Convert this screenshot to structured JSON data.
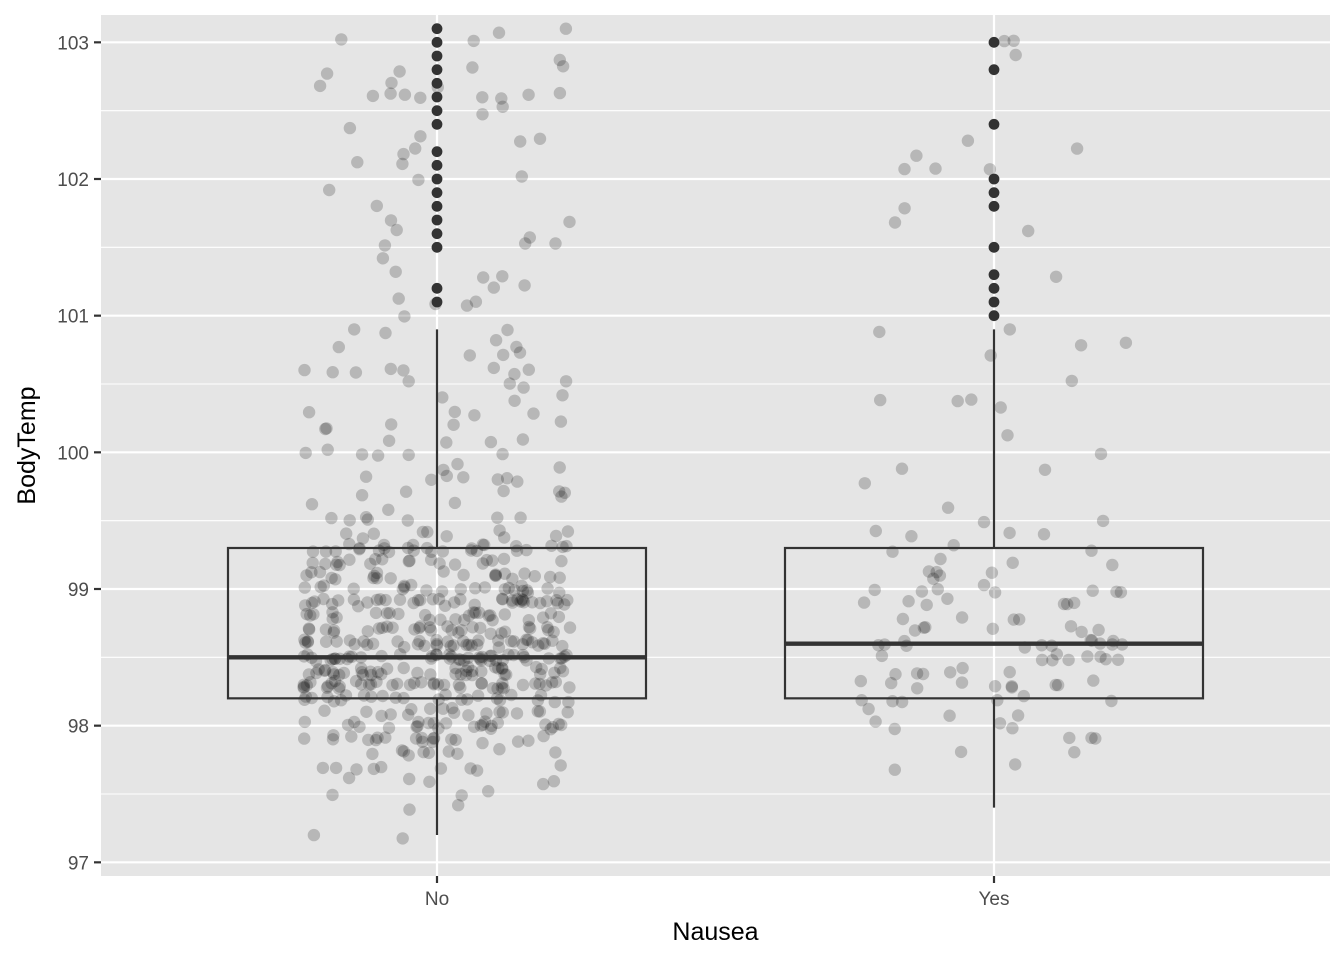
{
  "chart_data": {
    "type": "boxplot",
    "title": "",
    "xlabel": "Nausea",
    "ylabel": "BodyTemp",
    "categories": [
      "No",
      "Yes"
    ],
    "ylim": [
      96.9,
      103.2
    ],
    "y_ticks": [
      97,
      98,
      99,
      100,
      101,
      102,
      103
    ],
    "grid": true,
    "legend": "none",
    "boxes": [
      {
        "name": "No",
        "whisker_low": 97.2,
        "q1": 98.2,
        "median": 98.5,
        "q3": 99.3,
        "whisker_high": 100.9,
        "outliers": [
          101.1,
          101.2,
          101.5,
          101.6,
          101.7,
          101.8,
          101.9,
          102.0,
          102.1,
          102.2,
          102.4,
          102.5,
          102.6,
          102.7,
          102.8,
          102.9,
          103.0,
          103.1
        ]
      },
      {
        "name": "Yes",
        "whisker_low": 97.4,
        "q1": 98.2,
        "median": 98.6,
        "q3": 99.3,
        "whisker_high": 100.9,
        "outliers": [
          101.0,
          101.1,
          101.2,
          101.3,
          101.5,
          101.8,
          101.9,
          102.0,
          102.4,
          102.8,
          103.0
        ]
      }
    ],
    "jitter": {
      "point_counts": [
        600,
        130
      ],
      "alpha": 0.2
    }
  },
  "colors": {
    "panel": "#e5e5e5",
    "grid": "#ffffff",
    "box_line": "#333333",
    "outlier": "#333333",
    "jitter_point": "#000000",
    "tick_text": "#4d4d4d"
  }
}
